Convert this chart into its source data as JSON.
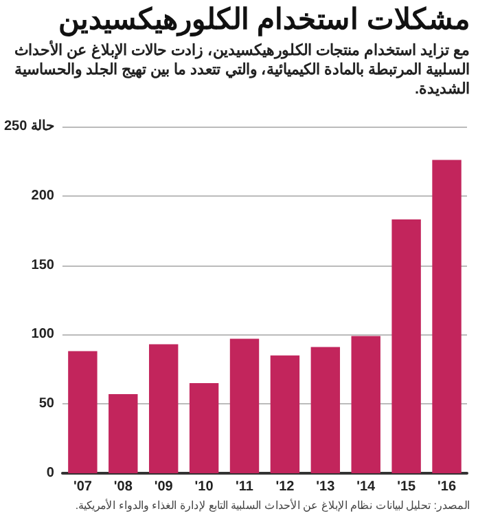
{
  "chart_data": {
    "type": "bar",
    "title": "مشكلات استخدام الكلورهيكسيدين",
    "subtitle": "مع تزايد استخدام منتجات الكلورهيكسيدين، زادت حالات الإبلاغ عن الأحداث السلبية المرتبطة بالمادة الكيميائية، والتي تتعدد ما بين تهيج الجلد والحساسية الشديدة.",
    "categories": [
      "'07",
      "'08",
      "'09",
      "'10",
      "'11",
      "'12",
      "'13",
      "'14",
      "'15",
      "'16"
    ],
    "values": [
      88,
      57,
      93,
      65,
      97,
      85,
      91,
      99,
      183,
      226
    ],
    "color": "#c2255c",
    "ylim": [
      0,
      250
    ],
    "yticks": [
      0,
      50,
      100,
      150,
      200,
      {
        "value": 250,
        "label": "250 حالة"
      }
    ],
    "grid": "y",
    "annotations": [
      "المصدر: تحليل لبيانات نظام الإبلاغ عن الأحداث السلبية التابع لإدارة الغذاء والدواء الأمريكية."
    ]
  }
}
